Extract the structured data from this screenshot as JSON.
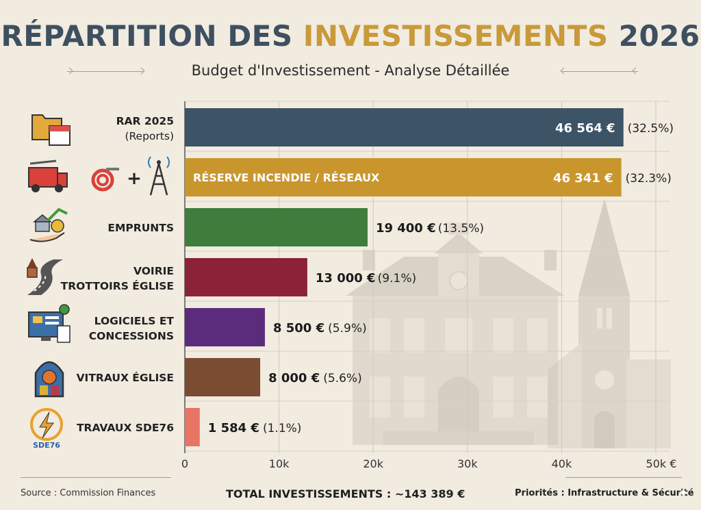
{
  "header": {
    "title_part1": "RÉPARTITION DES",
    "title_part2": "INVESTISSEMENTS",
    "title_part3": "2026",
    "subtitle": "Budget d'Investissement - Analyse Détaillée"
  },
  "footer": {
    "source": "Source : Commission Finances",
    "total": "TOTAL INVESTISSEMENTS : ~143 389 €",
    "priorities": "Priorités : Infrastructure & Sécurité"
  },
  "colors": {
    "title_main": "#3e5060",
    "title_accent": "#c99a3a",
    "background": "#f1ebe0"
  },
  "chart_data": {
    "type": "bar",
    "orientation": "horizontal",
    "categories": [
      {
        "line1": "RAR 2025",
        "line2": "(Reports)",
        "icon": "folder-calendar-icon"
      },
      {
        "line1": "",
        "line2": "",
        "icon": "fire-truck-hose-antenna-icon",
        "inbar_label": "RÉSERVE INCENDIE / RÉSEAUX"
      },
      {
        "line1": "EMPRUNTS",
        "line2": "",
        "icon": "bank-loan-icon"
      },
      {
        "line1": "VOIRIE",
        "line2": "TROTTOIRS ÉGLISE",
        "icon": "road-church-icon"
      },
      {
        "line1": "LOGICIELS ET",
        "line2": "CONCESSIONS",
        "icon": "computer-software-icon"
      },
      {
        "line1": "VITRAUX ÉGLISE",
        "line2": "",
        "icon": "stained-glass-icon"
      },
      {
        "line1": "TRAVAUX SDE76",
        "line2": "",
        "icon": "lightning-sde76-icon",
        "icon_text": "SDE76"
      }
    ],
    "values": [
      46564,
      46341,
      19400,
      13000,
      8500,
      8000,
      1584
    ],
    "value_labels": [
      "46 564 €",
      "46 341 €",
      "19 400 €",
      "13 000 €",
      "8 500 €",
      "8 000 €",
      "1 584 €"
    ],
    "percent_labels": [
      "(32.5%)",
      "(32.3%)",
      "(13.5%)",
      "(9.1%)",
      "(5.9%)",
      "(5.6%)",
      "(1.1%)"
    ],
    "bar_colors": [
      "#3d5467",
      "#c9962e",
      "#3f7d3c",
      "#8b2238",
      "#5c2c7c",
      "#7a4d33",
      "#e87466"
    ],
    "xlim": [
      0,
      50000
    ],
    "xticks": [
      0,
      10000,
      20000,
      30000,
      40000,
      50000
    ],
    "xtick_labels": [
      "0",
      "10k",
      "20k",
      "30k",
      "40k",
      "50k €"
    ],
    "grid": true
  }
}
